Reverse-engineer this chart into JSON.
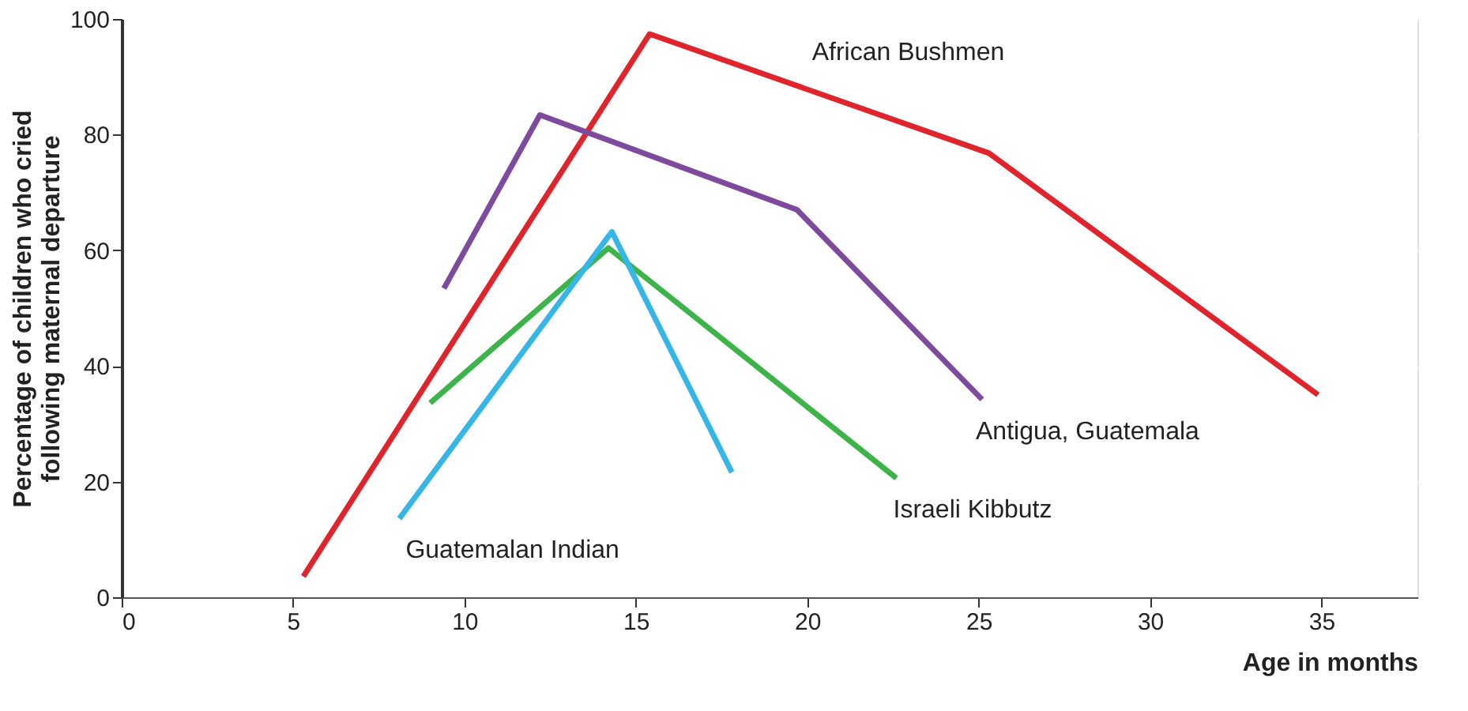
{
  "chart_data": {
    "type": "line",
    "xlabel": "Age in months",
    "ylabel": "Percentage of children who cried\nfollowing maternal departure",
    "xlim": [
      0,
      37.8
    ],
    "xticks": [
      0,
      5,
      10,
      15,
      20,
      25,
      30,
      35
    ],
    "ylim": [
      0,
      100
    ],
    "yticks": [
      0,
      20,
      40,
      60,
      80,
      100
    ],
    "grid": "y",
    "series": [
      {
        "name": "African Bushmen",
        "color": "#e0242b",
        "x": [
          5.3,
          15.4,
          25.3,
          34.9
        ],
        "values": [
          3.6,
          97.4,
          76.8,
          35.0
        ]
      },
      {
        "name": "Antigua, Guatemala",
        "color": "#7d4a9e",
        "x": [
          9.4,
          12.2,
          19.7,
          25.1
        ],
        "values": [
          53.4,
          83.4,
          67.0,
          34.2
        ]
      },
      {
        "name": "Israeli Kibbutz",
        "color": "#3cb44a",
        "x": [
          9.0,
          14.2,
          22.6
        ],
        "values": [
          33.6,
          60.4,
          20.6
        ]
      },
      {
        "name": "Guatemalan Indian",
        "color": "#35b6e6",
        "x": [
          8.1,
          14.3,
          17.8
        ],
        "values": [
          13.6,
          63.2,
          21.6
        ]
      }
    ]
  }
}
